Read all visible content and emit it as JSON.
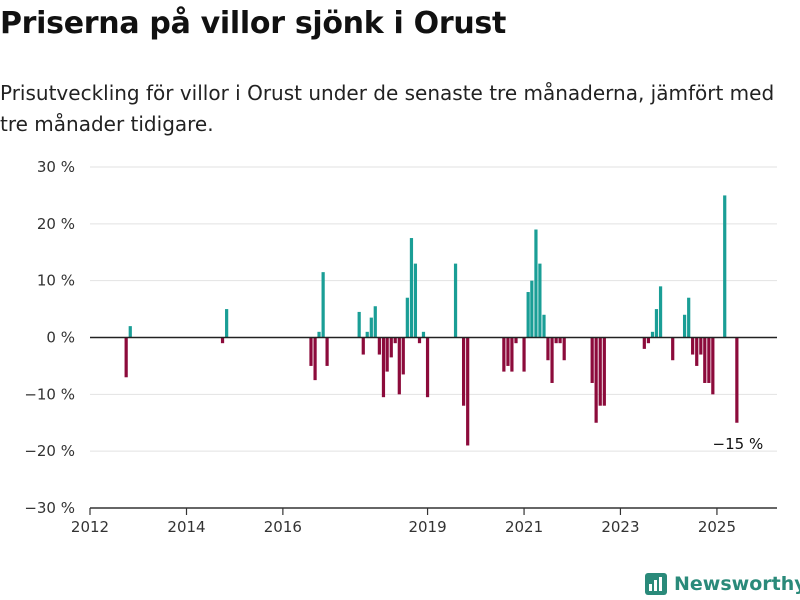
{
  "title": "Priserna på villor sjönk i Orust",
  "subtitle": "Prisutveckling för villor i Orust under de senaste tre månaderna, jämfört med tre månader tidigare.",
  "brand": {
    "name": "Newsworthy",
    "icon": "bar-chart-logo-icon"
  },
  "colors": {
    "positive": "#1a9e96",
    "negative": "#8c0b3b",
    "grid": "#e2e2e2",
    "zero": "#222222"
  },
  "chart_data": {
    "type": "bar",
    "x_unit": "date",
    "y_unit": "%",
    "ylim": [
      -30,
      30
    ],
    "yticks": [
      30,
      20,
      10,
      0,
      -10,
      -20,
      -30
    ],
    "ytick_labels": [
      "30 %",
      "20 %",
      "10 %",
      "0 %",
      "−10 %",
      "−20 %",
      "−30 %"
    ],
    "xlim": [
      "2012-01-01",
      "2026-04-01"
    ],
    "xticks": [
      "2012-01-01",
      "2014-01-01",
      "2016-01-01",
      "2019-01-01",
      "2021-01-01",
      "2023-01-01",
      "2025-01-01"
    ],
    "xtick_labels": [
      "2012",
      "2014",
      "2016",
      "2019",
      "2021",
      "2023",
      "2025"
    ],
    "grid": true,
    "end_label": "−15 %",
    "bars": [
      {
        "date": "2012-10-01",
        "value": -7
      },
      {
        "date": "2012-11-01",
        "value": 2
      },
      {
        "date": "2014-10-01",
        "value": -1
      },
      {
        "date": "2014-11-01",
        "value": 5
      },
      {
        "date": "2016-08-01",
        "value": -5
      },
      {
        "date": "2016-09-01",
        "value": -7.5
      },
      {
        "date": "2016-10-01",
        "value": 1
      },
      {
        "date": "2016-11-01",
        "value": 11.5
      },
      {
        "date": "2016-12-01",
        "value": -5
      },
      {
        "date": "2017-08-01",
        "value": 4.5
      },
      {
        "date": "2017-09-01",
        "value": -3
      },
      {
        "date": "2017-10-01",
        "value": 1
      },
      {
        "date": "2017-11-01",
        "value": 3.5
      },
      {
        "date": "2017-12-01",
        "value": 5.5
      },
      {
        "date": "2018-01-01",
        "value": -3
      },
      {
        "date": "2018-02-01",
        "value": -10.5
      },
      {
        "date": "2018-03-01",
        "value": -6
      },
      {
        "date": "2018-04-01",
        "value": -3.5
      },
      {
        "date": "2018-05-01",
        "value": -1
      },
      {
        "date": "2018-06-01",
        "value": -10
      },
      {
        "date": "2018-07-01",
        "value": -6.5
      },
      {
        "date": "2018-08-01",
        "value": 7
      },
      {
        "date": "2018-09-01",
        "value": 17.5
      },
      {
        "date": "2018-10-01",
        "value": 13
      },
      {
        "date": "2018-11-01",
        "value": -1
      },
      {
        "date": "2018-12-01",
        "value": 1
      },
      {
        "date": "2019-01-01",
        "value": -10.5
      },
      {
        "date": "2019-08-01",
        "value": 13
      },
      {
        "date": "2019-10-01",
        "value": -12
      },
      {
        "date": "2019-11-01",
        "value": -19
      },
      {
        "date": "2020-08-01",
        "value": -6
      },
      {
        "date": "2020-09-01",
        "value": -5
      },
      {
        "date": "2020-10-01",
        "value": -6
      },
      {
        "date": "2020-11-01",
        "value": -1
      },
      {
        "date": "2021-01-01",
        "value": -6
      },
      {
        "date": "2021-02-01",
        "value": 8
      },
      {
        "date": "2021-03-01",
        "value": 10
      },
      {
        "date": "2021-04-01",
        "value": 19
      },
      {
        "date": "2021-05-01",
        "value": 13
      },
      {
        "date": "2021-06-01",
        "value": 4
      },
      {
        "date": "2021-07-01",
        "value": -4
      },
      {
        "date": "2021-08-01",
        "value": -8
      },
      {
        "date": "2021-09-01",
        "value": -1
      },
      {
        "date": "2021-10-01",
        "value": -1
      },
      {
        "date": "2021-11-01",
        "value": -4
      },
      {
        "date": "2022-06-01",
        "value": -8
      },
      {
        "date": "2022-07-01",
        "value": -15
      },
      {
        "date": "2022-08-01",
        "value": -12
      },
      {
        "date": "2022-09-01",
        "value": -12
      },
      {
        "date": "2023-07-01",
        "value": -2
      },
      {
        "date": "2023-08-01",
        "value": -1
      },
      {
        "date": "2023-09-01",
        "value": 1
      },
      {
        "date": "2023-10-01",
        "value": 5
      },
      {
        "date": "2023-11-01",
        "value": 9
      },
      {
        "date": "2024-02-01",
        "value": -4
      },
      {
        "date": "2024-05-01",
        "value": 4
      },
      {
        "date": "2024-06-01",
        "value": 7
      },
      {
        "date": "2024-07-01",
        "value": -3
      },
      {
        "date": "2024-08-01",
        "value": -5
      },
      {
        "date": "2024-09-01",
        "value": -3
      },
      {
        "date": "2024-10-01",
        "value": -8
      },
      {
        "date": "2024-11-01",
        "value": -8
      },
      {
        "date": "2024-12-01",
        "value": -10
      },
      {
        "date": "2025-03-01",
        "value": 25
      },
      {
        "date": "2025-06-01",
        "value": -15
      }
    ]
  }
}
